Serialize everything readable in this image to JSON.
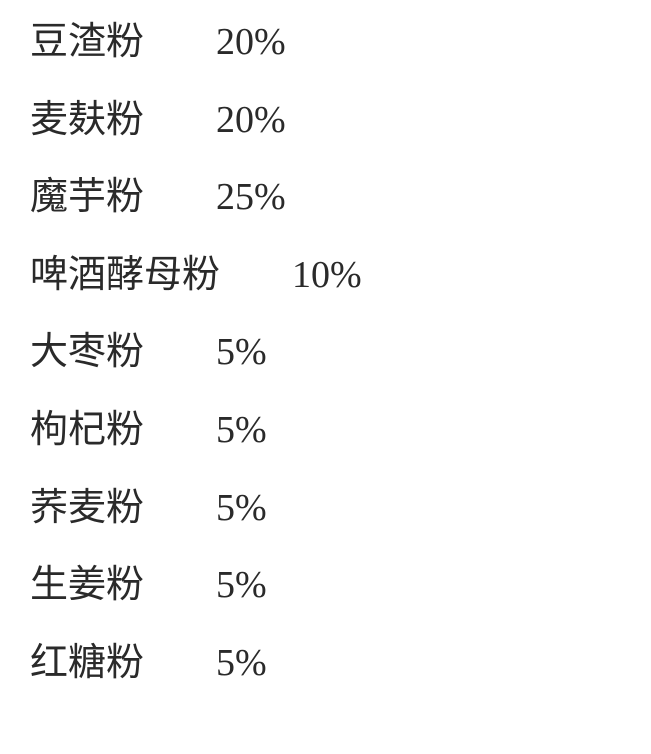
{
  "ingredients": [
    {
      "name": "豆渣粉",
      "percent": "20%",
      "nameWidth": "normal"
    },
    {
      "name": "麦麸粉",
      "percent": "20%",
      "nameWidth": "normal"
    },
    {
      "name": "魔芋粉",
      "percent": "25%",
      "nameWidth": "normal"
    },
    {
      "name": "啤酒酵母粉",
      "percent": "10%",
      "nameWidth": "wide"
    },
    {
      "name": "大枣粉",
      "percent": "5%",
      "nameWidth": "normal"
    },
    {
      "name": "枸杞粉",
      "percent": "5%",
      "nameWidth": "normal"
    },
    {
      "name": "荞麦粉",
      "percent": "5%",
      "nameWidth": "normal"
    },
    {
      "name": "生姜粉",
      "percent": "5%",
      "nameWidth": "normal"
    },
    {
      "name": "红糖粉",
      "percent": "5%",
      "nameWidth": "normal"
    }
  ],
  "styling": {
    "background_color": "#ffffff",
    "text_color": "#2a2a2a",
    "font_family": "SimSun",
    "font_size": 38,
    "row_gap": 32,
    "name_percent_gap": 72
  }
}
